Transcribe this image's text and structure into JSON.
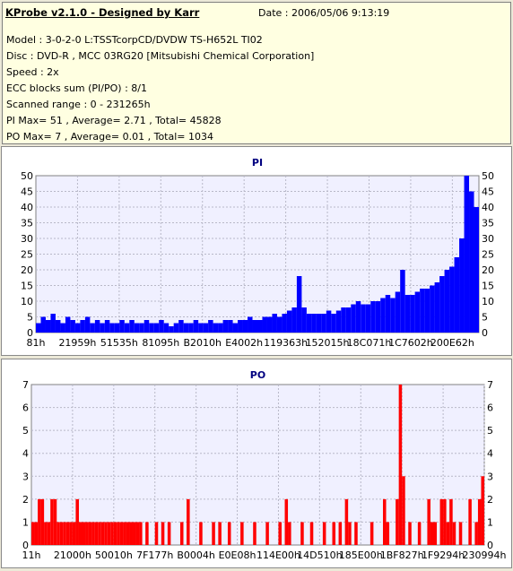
{
  "header": {
    "app_title": "KProbe v2.1.0 - Designed by Karr",
    "date": "Date : 2006/05/06 9:13:19",
    "lines": [
      "Model : 3-0-2-0 L:TSSTcorpCD/DVDW TS-H652L TI02",
      "Disc : DVD-R , MCC 03RG20   [Mitsubishi Chemical Corporation]",
      "Speed : 2x",
      "ECC blocks sum (PI/PO) : 8/1",
      "Scanned range : 0 - 231265h",
      "PI Max= 51 , Average= 2.71 , Total= 45828",
      "PO Max= 7 , Average= 0.01 , Total= 1034"
    ]
  },
  "colors": {
    "pi": "#0000ff",
    "po": "#ff0000",
    "plot_bg": "#f0f0ff",
    "grid": "#b8b8c8"
  },
  "chart_data": [
    {
      "type": "bar",
      "title": "PI",
      "ylim": [
        0,
        50
      ],
      "y_ticks": [
        "0",
        "5",
        "10",
        "15",
        "20",
        "25",
        "30",
        "35",
        "40",
        "45",
        "50"
      ],
      "x_tick_labels": [
        "81h",
        "21959h",
        "51535h",
        "81095h",
        "B2010h",
        "E4002h",
        "119363h",
        "152015h",
        "18C071h",
        "1C7602h",
        "200E62h"
      ],
      "grid": true,
      "series": [
        {
          "values": [
            3,
            5,
            4,
            6,
            4,
            3,
            5,
            4,
            3,
            4,
            5,
            3,
            4,
            3,
            4,
            3,
            3,
            4,
            3,
            4,
            3,
            3,
            4,
            3,
            3,
            4,
            3,
            2,
            3,
            4,
            3,
            3,
            4,
            3,
            3,
            4,
            3,
            3,
            4,
            4,
            3,
            4,
            4,
            5,
            4,
            4,
            5,
            5,
            6,
            5,
            6,
            7,
            8,
            18,
            8,
            6,
            6,
            6,
            6,
            7,
            6,
            7,
            8,
            8,
            9,
            10,
            9,
            9,
            10,
            10,
            11,
            12,
            11,
            13,
            20,
            12,
            12,
            13,
            14,
            14,
            15,
            16,
            18,
            20,
            21,
            24,
            30,
            51,
            45,
            40
          ]
        }
      ]
    },
    {
      "type": "bar",
      "title": "PO",
      "ylim": [
        0,
        7
      ],
      "y_ticks": [
        "0",
        "1",
        "2",
        "3",
        "4",
        "5",
        "6",
        "7"
      ],
      "x_tick_labels": [
        "11h",
        "21000h",
        "50010h",
        "7F177h",
        "B0004h",
        "E0E08h",
        "114E00h",
        "14D510h",
        "185E00h",
        "1BF827h",
        "1F9294h",
        "230994h"
      ],
      "grid": true,
      "series": [
        {
          "values": [
            1,
            1,
            2,
            2,
            1,
            1,
            2,
            2,
            1,
            1,
            1,
            1,
            1,
            1,
            2,
            1,
            1,
            1,
            1,
            1,
            1,
            1,
            1,
            1,
            1,
            1,
            1,
            1,
            1,
            1,
            1,
            1,
            1,
            1,
            1,
            0,
            1,
            0,
            0,
            1,
            0,
            1,
            0,
            1,
            0,
            0,
            0,
            1,
            0,
            2,
            0,
            0,
            0,
            1,
            0,
            0,
            0,
            1,
            0,
            1,
            0,
            0,
            1,
            0,
            0,
            0,
            1,
            0,
            0,
            0,
            1,
            0,
            0,
            0,
            1,
            0,
            0,
            0,
            1,
            0,
            2,
            1,
            0,
            0,
            0,
            1,
            0,
            0,
            1,
            0,
            0,
            0,
            1,
            0,
            0,
            1,
            0,
            1,
            0,
            2,
            1,
            0,
            1,
            0,
            0,
            0,
            0,
            1,
            0,
            0,
            0,
            2,
            1,
            0,
            0,
            2,
            7,
            3,
            0,
            1,
            0,
            0,
            1,
            0,
            0,
            2,
            1,
            1,
            0,
            2,
            2,
            1,
            2,
            1,
            0,
            1,
            0,
            0,
            2,
            0,
            1,
            2,
            3
          ]
        }
      ]
    }
  ]
}
